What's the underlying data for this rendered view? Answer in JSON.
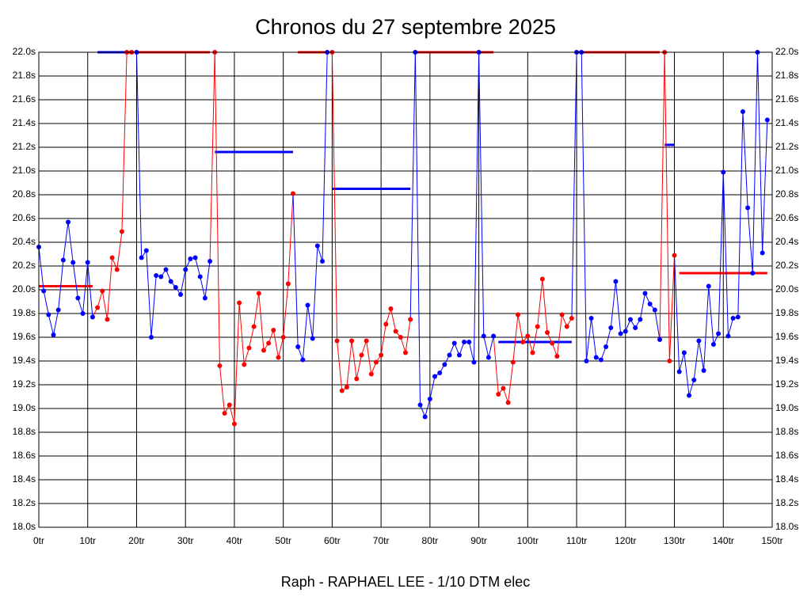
{
  "chart_data": {
    "type": "line",
    "title": "Chronos du 27 septembre 2025",
    "footer": "Raph - RAPHAEL LEE - 1/10 DTM elec",
    "values": [
      20.36,
      19.99,
      19.79,
      19.62,
      19.83,
      20.25,
      20.57,
      20.23,
      19.93,
      19.8,
      20.23,
      19.77,
      19.85,
      19.99,
      19.75,
      20.27,
      20.17,
      20.49,
      22.0,
      22.0,
      22.0,
      20.27,
      20.33,
      19.6,
      20.12,
      20.11,
      20.17,
      20.07,
      20.02,
      19.96,
      20.17,
      20.26,
      20.27,
      20.11,
      19.93,
      20.24,
      22.0,
      19.36,
      18.96,
      19.03,
      18.87,
      19.89,
      19.37,
      19.51,
      19.69,
      19.97,
      19.49,
      19.55,
      19.66,
      19.43,
      19.6,
      20.05,
      20.81,
      19.52,
      19.41,
      19.87,
      19.59,
      20.37,
      20.24,
      22.0,
      22.0,
      19.57,
      19.15,
      19.18,
      19.57,
      19.25,
      19.45,
      19.57,
      19.29,
      19.39,
      19.45,
      19.71,
      19.84,
      19.65,
      19.6,
      19.47,
      19.75,
      22.0,
      19.03,
      18.93,
      19.08,
      19.27,
      19.3,
      19.37,
      19.45,
      19.55,
      19.45,
      19.56,
      19.56,
      19.39,
      22.0,
      19.61,
      19.43,
      19.61,
      19.12,
      19.17,
      19.05,
      19.39,
      19.79,
      19.56,
      19.61,
      19.47,
      19.69,
      20.09,
      19.64,
      19.55,
      19.44,
      19.79,
      19.69,
      19.76,
      22.0,
      22.0,
      19.4,
      19.76,
      19.43,
      19.41,
      19.52,
      19.68,
      20.07,
      19.63,
      19.65,
      19.75,
      19.68,
      19.75,
      19.97,
      19.88,
      19.83,
      19.58,
      22.0,
      19.4,
      20.29,
      19.31,
      19.47,
      19.11,
      19.24,
      19.57,
      19.32,
      20.03,
      19.54,
      19.63,
      20.99,
      19.61,
      19.76,
      19.77,
      21.5,
      20.69,
      20.14,
      22.0,
      20.31,
      21.43
    ],
    "stints": [
      {
        "from": 0,
        "to": 11,
        "color": "#0000ff",
        "average": 20.03,
        "average_color": "#ff0000"
      },
      {
        "from": 12,
        "to": 19,
        "color": "#ff0000",
        "average": 22.0,
        "average_color": "#0000ff"
      },
      {
        "from": 20,
        "to": 35,
        "color": "#0000ff",
        "average": 22.0,
        "average_color": "#ff0000"
      },
      {
        "from": 36,
        "to": 52,
        "color": "#ff0000",
        "average": 21.16,
        "average_color": "#0000ff"
      },
      {
        "from": 53,
        "to": 59,
        "color": "#0000ff",
        "average": 22.0,
        "average_color": "#ff0000"
      },
      {
        "from": 60,
        "to": 76,
        "color": "#ff0000",
        "average": 20.85,
        "average_color": "#0000ff"
      },
      {
        "from": 77,
        "to": 93,
        "color": "#0000ff",
        "average": 22.0,
        "average_color": "#ff0000"
      },
      {
        "from": 94,
        "to": 109,
        "color": "#ff0000",
        "average": 19.56,
        "average_color": "#0000ff"
      },
      {
        "from": 110,
        "to": 127,
        "color": "#0000ff",
        "average": 22.0,
        "average_color": "#ff0000"
      },
      {
        "from": 128,
        "to": 130,
        "color": "#ff0000",
        "average": 21.22,
        "average_color": "#0000ff"
      },
      {
        "from": 131,
        "to": 149,
        "color": "#0000ff",
        "average": 20.14,
        "average_color": "#ff0000"
      }
    ],
    "xlim": [
      0,
      150
    ],
    "xticks": [
      {
        "value": 0,
        "label": "0tr"
      },
      {
        "value": 10,
        "label": "10tr"
      },
      {
        "value": 20,
        "label": "20tr"
      },
      {
        "value": 30,
        "label": "30tr"
      },
      {
        "value": 40,
        "label": "40tr"
      },
      {
        "value": 50,
        "label": "50tr"
      },
      {
        "value": 60,
        "label": "60tr"
      },
      {
        "value": 70,
        "label": "70tr"
      },
      {
        "value": 80,
        "label": "80tr"
      },
      {
        "value": 90,
        "label": "90tr"
      },
      {
        "value": 100,
        "label": "100tr"
      },
      {
        "value": 110,
        "label": "110tr"
      },
      {
        "value": 120,
        "label": "120tr"
      },
      {
        "value": 130,
        "label": "130tr"
      },
      {
        "value": 140,
        "label": "140tr"
      },
      {
        "value": 150,
        "label": "150tr"
      }
    ],
    "ylim": [
      18.0,
      22.0
    ],
    "yticks": [
      {
        "value": 18.0,
        "label": "18.0s"
      },
      {
        "value": 18.2,
        "label": "18.2s"
      },
      {
        "value": 18.4,
        "label": "18.4s"
      },
      {
        "value": 18.6,
        "label": "18.6s"
      },
      {
        "value": 18.8,
        "label": "18.8s"
      },
      {
        "value": 19.0,
        "label": "19.0s"
      },
      {
        "value": 19.2,
        "label": "19.2s"
      },
      {
        "value": 19.4,
        "label": "19.4s"
      },
      {
        "value": 19.6,
        "label": "19.6s"
      },
      {
        "value": 19.8,
        "label": "19.8s"
      },
      {
        "value": 20.0,
        "label": "20.0s"
      },
      {
        "value": 20.2,
        "label": "20.2s"
      },
      {
        "value": 20.4,
        "label": "20.4s"
      },
      {
        "value": 20.6,
        "label": "20.6s"
      },
      {
        "value": 20.8,
        "label": "20.8s"
      },
      {
        "value": 21.0,
        "label": "21.0s"
      },
      {
        "value": 21.2,
        "label": "21.2s"
      },
      {
        "value": 21.4,
        "label": "21.4s"
      },
      {
        "value": 21.6,
        "label": "21.6s"
      },
      {
        "value": 21.8,
        "label": "21.8s"
      },
      {
        "value": 22.0,
        "label": "22.0s"
      }
    ],
    "grid": true
  }
}
